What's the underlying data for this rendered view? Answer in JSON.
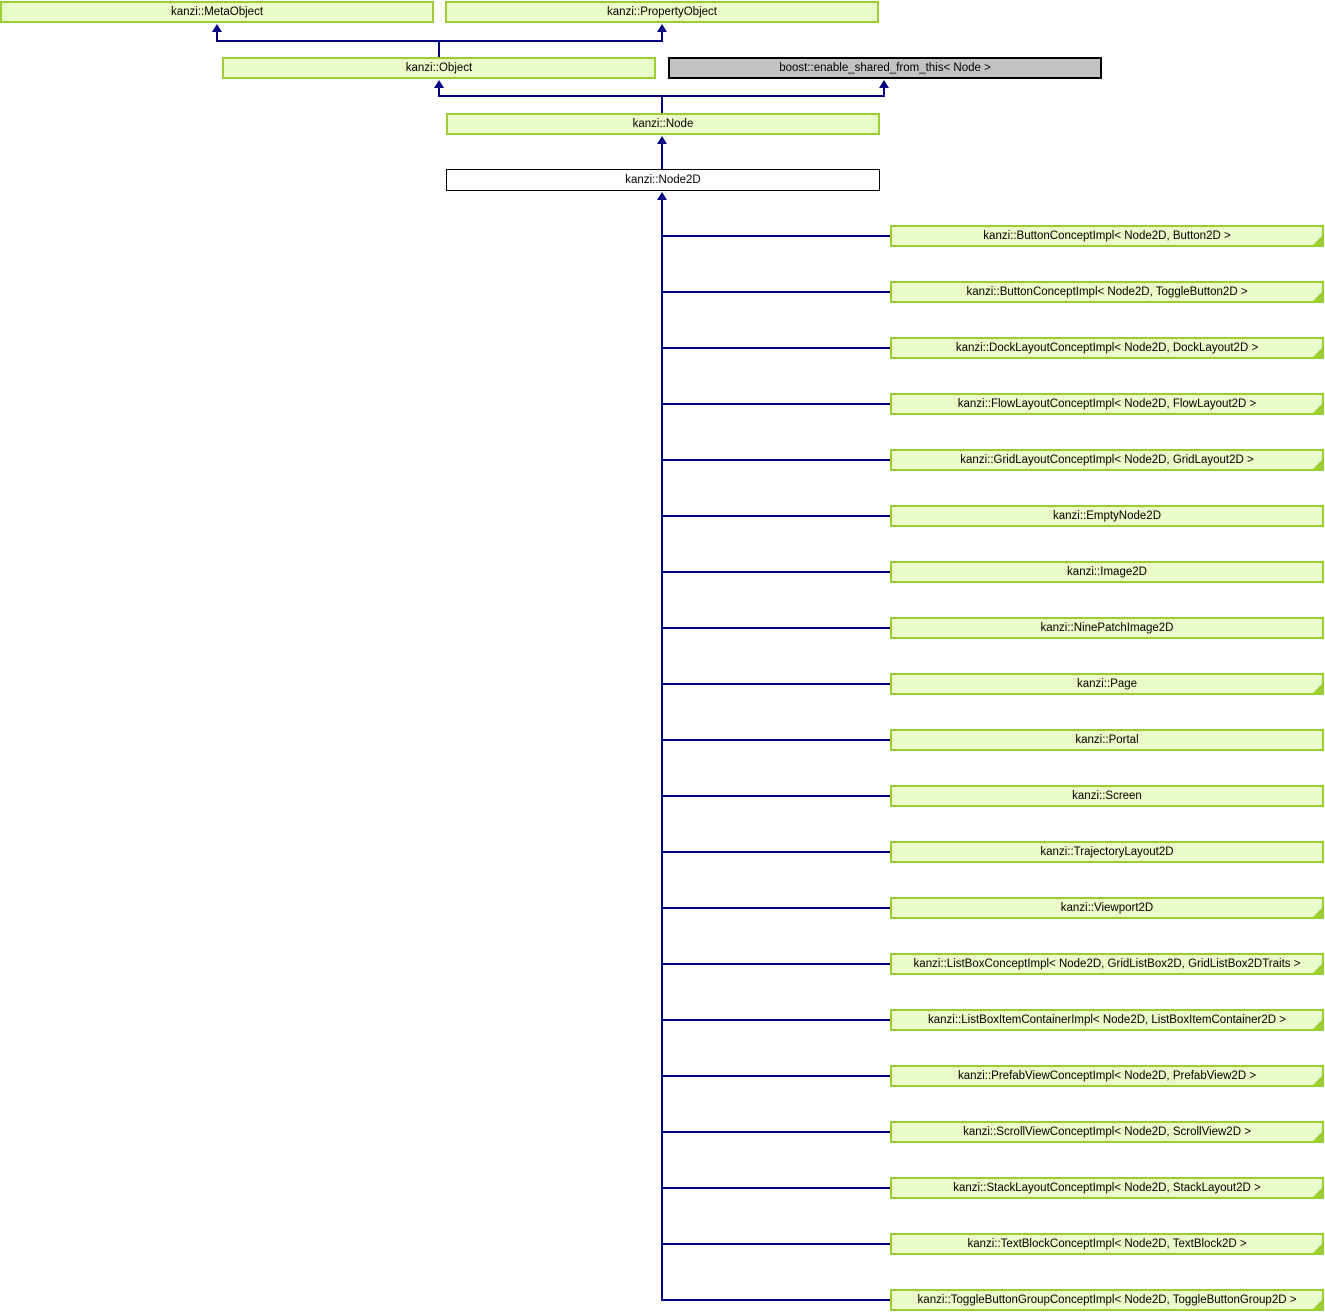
{
  "diagram": {
    "kind": "class-inheritance-diagram",
    "focus_class": "kanzi::Node2D",
    "colors": {
      "background": "#FFFFFF",
      "node_fill": "#E9F9C8",
      "node_border": "#9ACD32",
      "gray_fill": "#C2C2C2",
      "gray_border": "#000000",
      "focus_fill": "#FFFFFF",
      "focus_border": "#000000",
      "edge": "#000080",
      "text": "#000000"
    },
    "ancestors": {
      "meta_object": "kanzi::MetaObject",
      "property_object": "kanzi::PropertyObject",
      "object": "kanzi::Object",
      "enable_shared": "boost::enable_shared_from_this< Node >",
      "node": "kanzi::Node",
      "node2d": "kanzi::Node2D"
    },
    "children": [
      {
        "label": "kanzi::ButtonConceptImpl< Node2D, Button2D >",
        "has_subclasses": true
      },
      {
        "label": "kanzi::ButtonConceptImpl< Node2D, ToggleButton2D >",
        "has_subclasses": true
      },
      {
        "label": "kanzi::DockLayoutConceptImpl< Node2D, DockLayout2D >",
        "has_subclasses": true
      },
      {
        "label": "kanzi::FlowLayoutConceptImpl< Node2D, FlowLayout2D >",
        "has_subclasses": true
      },
      {
        "label": "kanzi::GridLayoutConceptImpl< Node2D, GridLayout2D >",
        "has_subclasses": true
      },
      {
        "label": "kanzi::EmptyNode2D",
        "has_subclasses": false
      },
      {
        "label": "kanzi::Image2D",
        "has_subclasses": false
      },
      {
        "label": "kanzi::NinePatchImage2D",
        "has_subclasses": false
      },
      {
        "label": "kanzi::Page",
        "has_subclasses": true
      },
      {
        "label": "kanzi::Portal",
        "has_subclasses": false
      },
      {
        "label": "kanzi::Screen",
        "has_subclasses": false
      },
      {
        "label": "kanzi::TrajectoryLayout2D",
        "has_subclasses": false
      },
      {
        "label": "kanzi::Viewport2D",
        "has_subclasses": true
      },
      {
        "label": "kanzi::ListBoxConceptImpl< Node2D, GridListBox2D, GridListBox2DTraits >",
        "has_subclasses": true
      },
      {
        "label": "kanzi::ListBoxItemContainerImpl< Node2D, ListBoxItemContainer2D >",
        "has_subclasses": true
      },
      {
        "label": "kanzi::PrefabViewConceptImpl< Node2D, PrefabView2D >",
        "has_subclasses": true
      },
      {
        "label": "kanzi::ScrollViewConceptImpl< Node2D, ScrollView2D >",
        "has_subclasses": true
      },
      {
        "label": "kanzi::StackLayoutConceptImpl< Node2D, StackLayout2D >",
        "has_subclasses": true
      },
      {
        "label": "kanzi::TextBlockConceptImpl< Node2D, TextBlock2D >",
        "has_subclasses": true
      },
      {
        "label": "kanzi::ToggleButtonGroupConceptImpl< Node2D, ToggleButtonGroup2D >",
        "has_subclasses": true
      }
    ]
  }
}
